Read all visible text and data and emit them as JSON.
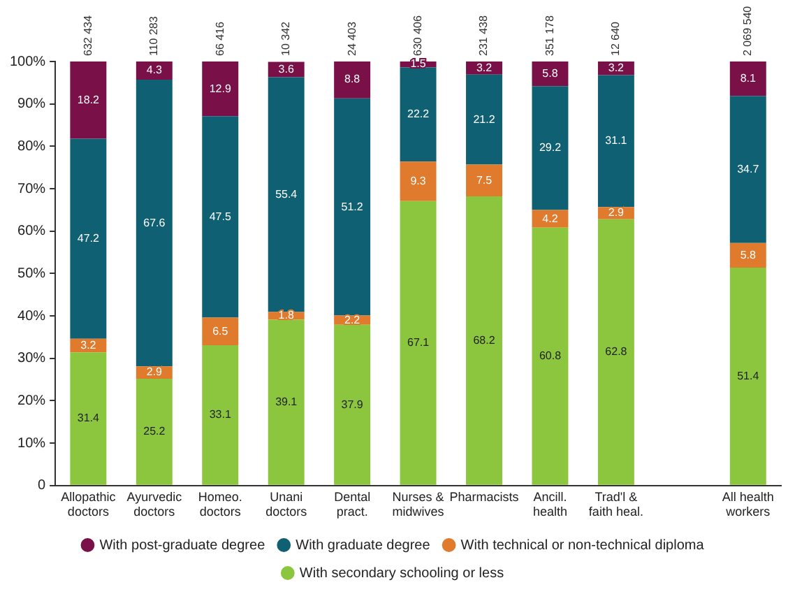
{
  "chart_data": {
    "type": "bar",
    "stacked": true,
    "data_labels": true,
    "legend": "bottom",
    "grid": false,
    "categories": [
      "Allopathic doctors",
      "Ayurvedic doctors",
      "Homeo. doctors",
      "Unani doctors",
      "Dental pract.",
      "Nurses & midwives",
      "Pharmacists",
      "Ancill. health",
      "Trad'l & faith heal.",
      null,
      "All health workers"
    ],
    "ylim": [
      0,
      100
    ],
    "yticks": [
      {
        "value": 0,
        "label": "0"
      },
      {
        "value": 10,
        "label": "10%"
      },
      {
        "value": 20,
        "label": "20%"
      },
      {
        "value": 30,
        "label": "30%"
      },
      {
        "value": 40,
        "label": "40%"
      },
      {
        "value": 50,
        "label": "50%"
      },
      {
        "value": 60,
        "label": "60%"
      },
      {
        "value": 70,
        "label": "70%"
      },
      {
        "value": 80,
        "label": "80%"
      },
      {
        "value": 90,
        "label": "90%"
      },
      {
        "value": 100,
        "label": "100%"
      }
    ],
    "series": [
      {
        "name": "With secondary schooling or less",
        "color": "#8cc63f",
        "values": [
          31.4,
          25.2,
          33.1,
          39.1,
          37.9,
          67.1,
          68.2,
          60.8,
          62.8,
          null,
          51.4
        ]
      },
      {
        "name": "With technical or non-technical diploma",
        "color": "#e07b2e",
        "values": [
          3.2,
          2.9,
          6.5,
          1.8,
          2.2,
          9.3,
          7.5,
          4.2,
          2.9,
          null,
          5.8
        ]
      },
      {
        "name": "With graduate degree",
        "color": "#0f6073",
        "values": [
          47.2,
          67.6,
          47.5,
          55.4,
          51.2,
          22.2,
          21.2,
          29.2,
          31.1,
          null,
          34.7
        ]
      },
      {
        "name": "With post-graduate degree",
        "color": "#7a1048",
        "values": [
          18.2,
          4.3,
          12.9,
          3.6,
          8.8,
          1.5,
          3.2,
          5.8,
          3.2,
          null,
          8.1
        ]
      }
    ],
    "annotations": [
      {
        "text": "632 434",
        "x": "Allopathic doctors",
        "y": 100
      },
      {
        "text": "110 283",
        "x": "Ayurvedic doctors",
        "y": 100
      },
      {
        "text": "66 416",
        "x": "Homeo. doctors",
        "y": 100
      },
      {
        "text": "10 342",
        "x": "Unani doctors",
        "y": 100
      },
      {
        "text": "24 403",
        "x": "Dental pract.",
        "y": 100
      },
      {
        "text": "630 406",
        "x": "Nurses & midwives",
        "y": 100
      },
      {
        "text": "231 438",
        "x": "Pharmacists",
        "y": 100
      },
      {
        "text": "351 178",
        "x": "Ancill. health",
        "y": 100
      },
      {
        "text": "12 640",
        "x": "Trad'l & faith heal.",
        "y": 100
      },
      {
        "text": "2 069 540",
        "x": "All health workers",
        "y": 100
      }
    ]
  }
}
